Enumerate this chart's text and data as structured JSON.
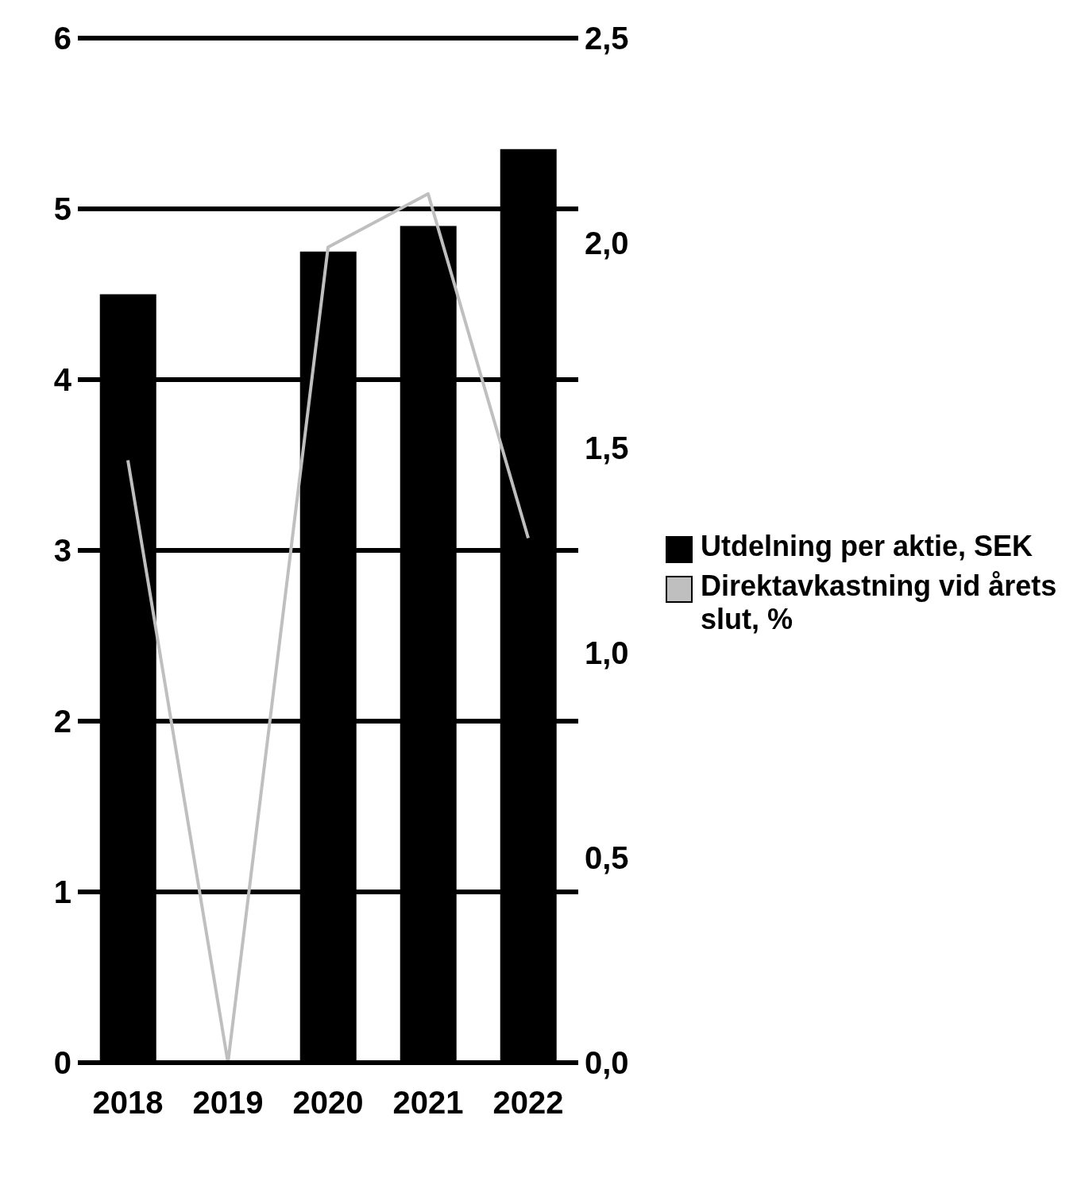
{
  "chart_data": {
    "type": "bar",
    "categories": [
      "2018",
      "2019",
      "2020",
      "2021",
      "2022"
    ],
    "series": [
      {
        "name": "Utdelning per aktie, SEK",
        "color": "#000000",
        "values": [
          4.5,
          0,
          4.75,
          4.9,
          5.35
        ]
      },
      {
        "name": "Direktavkastning vid årets slut, %",
        "type": "line",
        "axis": "y2",
        "color": "#bfbfbf",
        "values": [
          1.47,
          0,
          1.99,
          2.12,
          1.28
        ]
      }
    ],
    "ylim": [
      0,
      6
    ],
    "yticks": [
      0,
      1,
      2,
      3,
      4,
      5,
      6
    ],
    "y2lim": [
      0,
      2.5
    ],
    "y2ticks": [
      {
        "value": 0,
        "label": "0,0"
      },
      {
        "value": 0.5,
        "label": "0,5"
      },
      {
        "value": 1,
        "label": "1,0"
      },
      {
        "value": 1.5,
        "label": "1,5"
      },
      {
        "value": 2,
        "label": "2,0"
      },
      {
        "value": 2.5,
        "label": "2,5"
      }
    ],
    "grid": "y",
    "legend": "right",
    "marker": "none"
  }
}
